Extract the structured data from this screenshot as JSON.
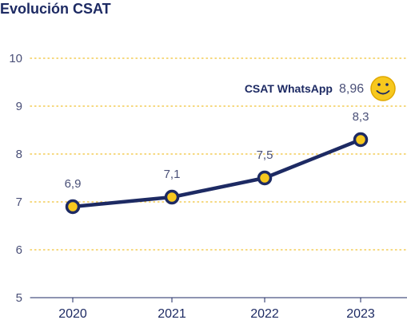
{
  "chart_data": {
    "type": "line",
    "title": "Evolución CSAT",
    "categories": [
      "2020",
      "2021",
      "2022",
      "2023"
    ],
    "values": [
      6.9,
      7.1,
      7.5,
      8.3
    ],
    "data_labels": [
      "6,9",
      "7,1",
      "7,5",
      "8,3"
    ],
    "ylim": [
      5,
      10
    ],
    "yticks": [
      "5",
      "6",
      "7",
      "8",
      "9",
      "10"
    ],
    "grid": true,
    "annotation": {
      "label": "CSAT WhatsApp",
      "value": "8,96",
      "value_num": 8.96,
      "icon": "smiley-face-icon"
    },
    "colors": {
      "line": "#1d2a63",
      "marker_fill": "#f7c81e",
      "grid": "#f0c030",
      "text": "#1d2a63",
      "smiley": "#f7c81e"
    }
  }
}
